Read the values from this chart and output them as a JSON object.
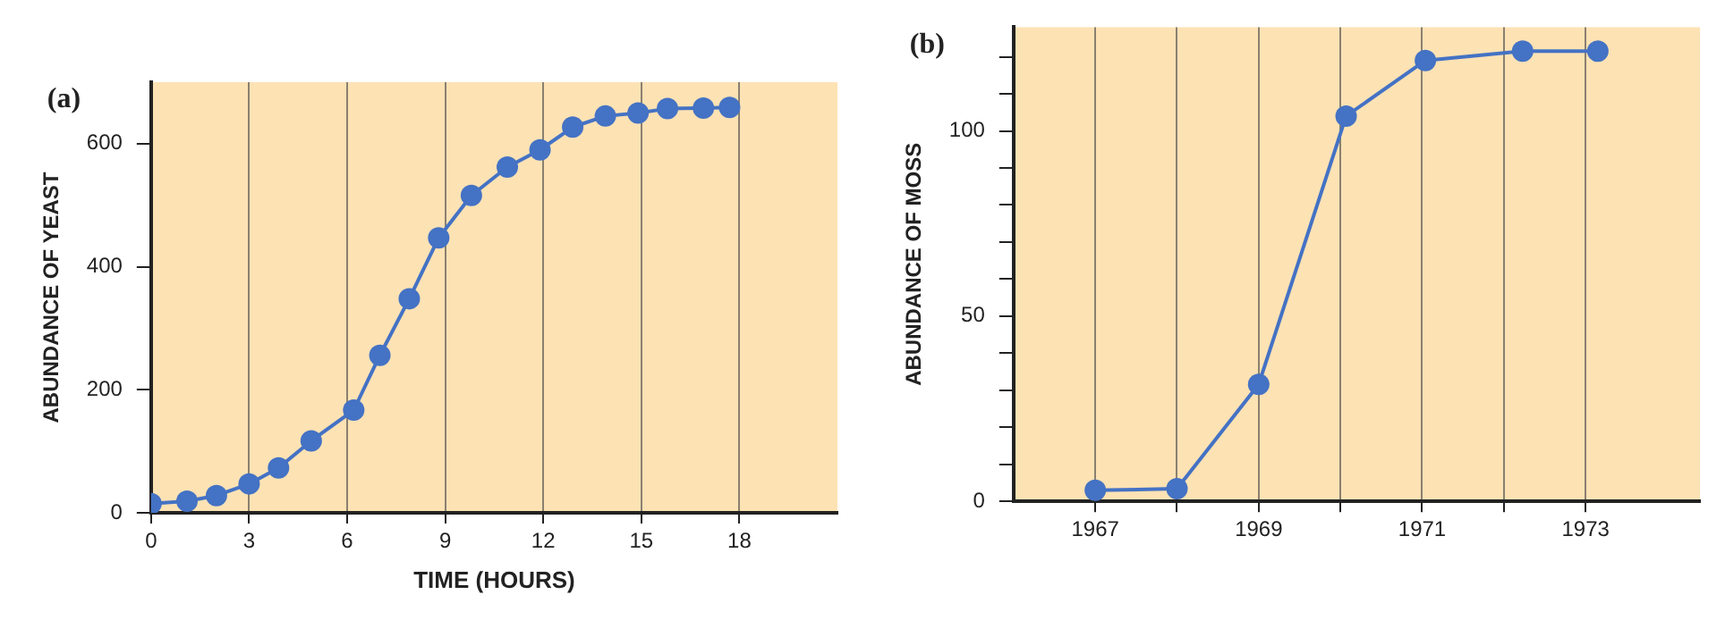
{
  "chart_data": [
    {
      "type": "line",
      "title": "(a)",
      "xlabel": "TIME (HOURS)",
      "ylabel": "ABUNDANCE OF YEAST",
      "x": [
        0,
        1.1,
        2,
        3,
        3.9,
        4.9,
        6.2,
        7,
        7.9,
        8.8,
        9.8,
        10.9,
        11.9,
        12.9,
        13.9,
        14.9,
        15.8,
        16.9,
        17.7
      ],
      "series": [
        {
          "color": "#4472c4",
          "values": [
            15,
            19,
            28,
            47,
            73,
            117,
            167,
            256,
            348,
            447,
            516,
            562,
            590,
            627,
            645,
            650,
            657,
            658,
            659
          ]
        }
      ],
      "xlim": [
        0,
        21
      ],
      "xticks": [
        0,
        3,
        6,
        9,
        12,
        15,
        18
      ],
      "ylim": [
        0,
        700
      ],
      "yticks": [
        0,
        200,
        400,
        600
      ],
      "grid": "x",
      "legend": false,
      "marker": "circle",
      "line_style": "solid"
    },
    {
      "type": "line",
      "title": "(b)",
      "ylabel": "ABUNDANCE OF MOSS",
      "x": [
        1967,
        1968,
        1969,
        1970.07,
        1971.04,
        1972.23,
        1973.15
      ],
      "series": [
        {
          "color": "#4472c4",
          "values": [
            3,
            3.4,
            31.6,
            104,
            119,
            121.5,
            121.5
          ]
        }
      ],
      "xlim": [
        1966,
        1974.4
      ],
      "xticks": [
        1967,
        {
          "value": 1968,
          "label": null
        },
        1969,
        {
          "value": 1970,
          "label": null
        },
        1971,
        {
          "value": 1972,
          "label": null
        },
        1973
      ],
      "ylim": [
        0,
        128
      ],
      "yticks": [
        0,
        {
          "value": 10,
          "label": null
        },
        {
          "value": 20,
          "label": null
        },
        {
          "value": 30,
          "label": null
        },
        {
          "value": 40,
          "label": null
        },
        50,
        {
          "value": 60,
          "label": null
        },
        {
          "value": 70,
          "label": null
        },
        {
          "value": 80,
          "label": null
        },
        {
          "value": 90,
          "label": null
        },
        100,
        {
          "value": 110,
          "label": null
        },
        {
          "value": 120,
          "label": null
        }
      ],
      "grid": "x",
      "legend": false,
      "marker": "circle",
      "line_style": "solid"
    }
  ]
}
